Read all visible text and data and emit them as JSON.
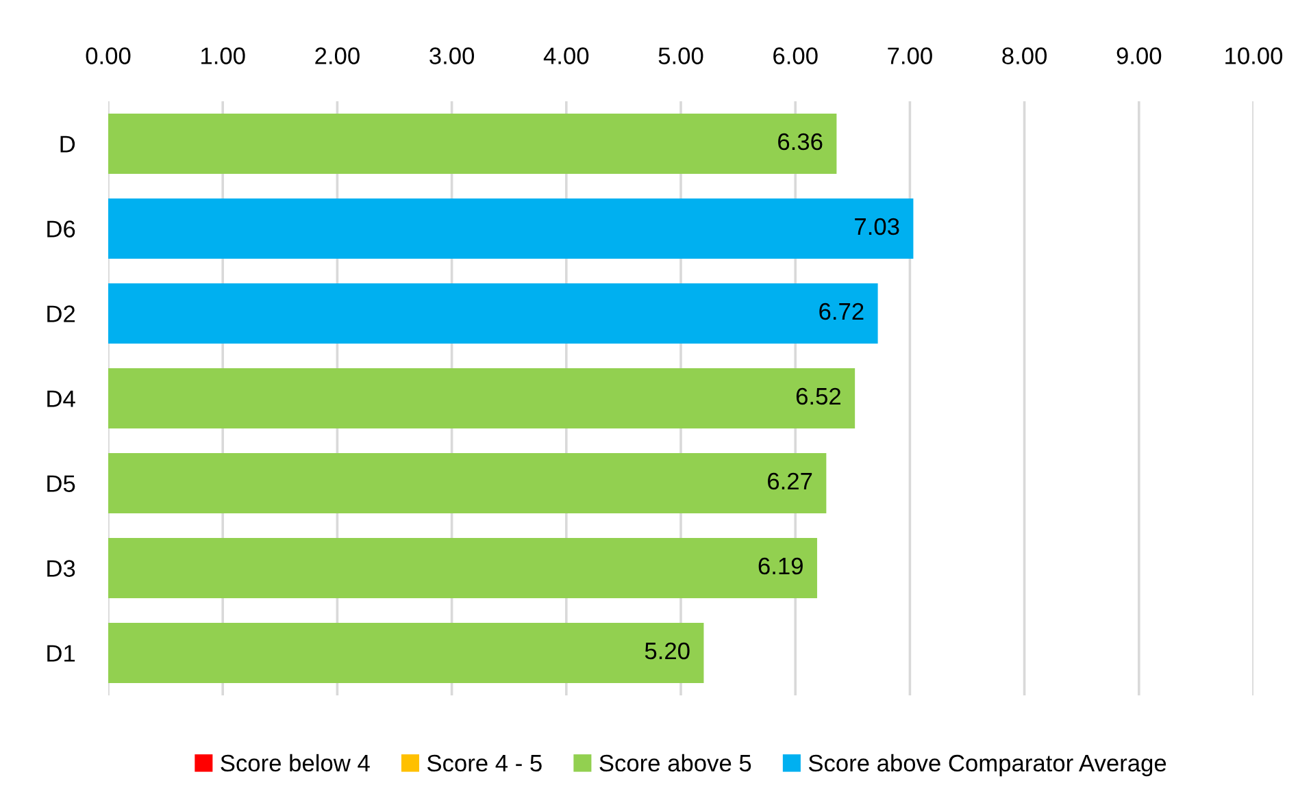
{
  "chart_data": {
    "type": "bar",
    "orientation": "horizontal",
    "stacked": true,
    "categories": [
      "D",
      "D6",
      "D2",
      "D4",
      "D5",
      "D3",
      "D1"
    ],
    "series": [
      {
        "name": "Score below 4",
        "color": "#ff0000",
        "values": [
          null,
          null,
          null,
          null,
          null,
          null,
          null
        ]
      },
      {
        "name": "Score 4 - 5",
        "color": "#ffc000",
        "values": [
          null,
          null,
          null,
          null,
          null,
          null,
          null
        ]
      },
      {
        "name": "Score above 5",
        "color": "#92d050",
        "values": [
          6.36,
          null,
          null,
          6.52,
          6.27,
          6.19,
          5.2
        ],
        "value_labels": [
          "6.36",
          null,
          null,
          "6.52",
          "6.27",
          "6.19",
          "5.20"
        ]
      },
      {
        "name": "Score above Comparator Average",
        "color": "#00b0f0",
        "values": [
          null,
          7.03,
          6.72,
          null,
          null,
          null,
          null
        ],
        "value_labels": [
          null,
          "7.03",
          "6.72",
          null,
          null,
          null,
          null
        ]
      }
    ],
    "xlim": [
      0,
      10
    ],
    "xticks": [
      {
        "value": 0,
        "label": "0.00"
      },
      {
        "value": 1,
        "label": "1.00"
      },
      {
        "value": 2,
        "label": "2.00"
      },
      {
        "value": 3,
        "label": "3.00"
      },
      {
        "value": 4,
        "label": "4.00"
      },
      {
        "value": 5,
        "label": "5.00"
      },
      {
        "value": 6,
        "label": "6.00"
      },
      {
        "value": 7,
        "label": "7.00"
      },
      {
        "value": 8,
        "label": "8.00"
      },
      {
        "value": 9,
        "label": "9.00"
      },
      {
        "value": 10,
        "label": "10.00"
      }
    ],
    "grid": "x",
    "legend": "bottom"
  }
}
